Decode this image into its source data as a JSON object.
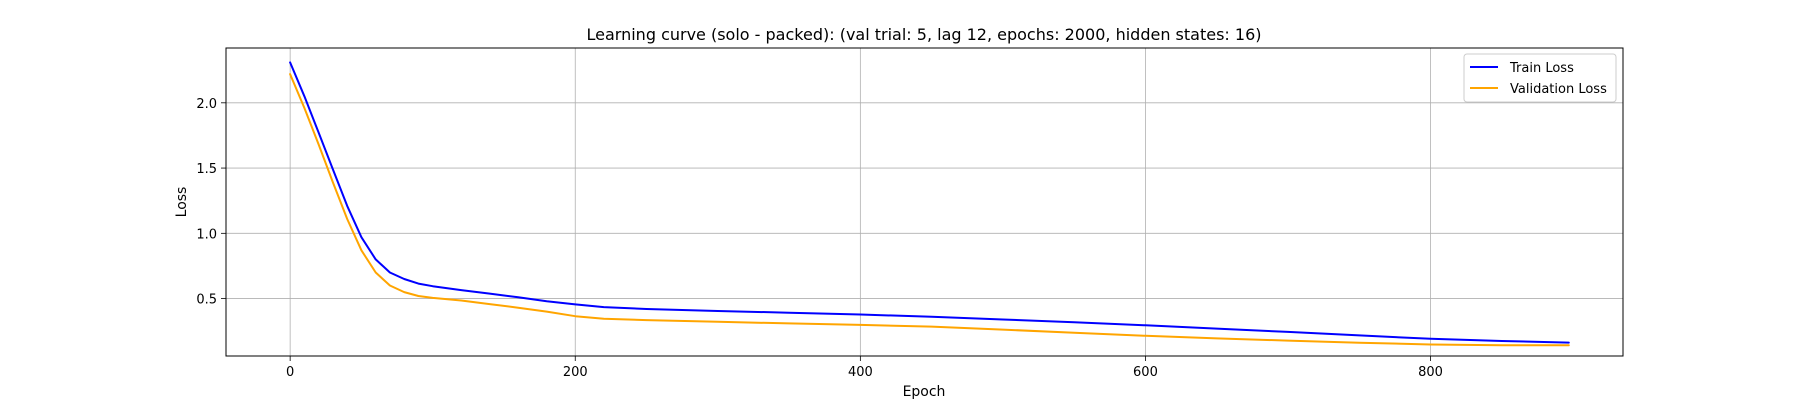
{
  "chart_data": {
    "type": "line",
    "title": "Learning curve (solo - packed): (val trial: 5, lag 12, epochs: 2000, hidden states: 16)",
    "xlabel": "Epoch",
    "ylabel": "Loss",
    "xlim": [
      -45,
      935
    ],
    "ylim": [
      0.06,
      2.42
    ],
    "xticks": [
      0,
      200,
      400,
      600,
      800
    ],
    "yticks": [
      0.5,
      1.0,
      1.5,
      2.0
    ],
    "xtick_labels": [
      "0",
      "200",
      "400",
      "600",
      "800"
    ],
    "ytick_labels": [
      "0.5",
      "1.0",
      "1.5",
      "2.0"
    ],
    "grid": true,
    "legend_position": "top-right",
    "series": [
      {
        "name": "Train Loss",
        "color": "#0000ff",
        "points": [
          [
            0,
            2.31
          ],
          [
            10,
            2.05
          ],
          [
            20,
            1.77
          ],
          [
            30,
            1.49
          ],
          [
            40,
            1.21
          ],
          [
            50,
            0.97
          ],
          [
            60,
            0.8
          ],
          [
            70,
            0.7
          ],
          [
            80,
            0.65
          ],
          [
            90,
            0.615
          ],
          [
            100,
            0.595
          ],
          [
            120,
            0.565
          ],
          [
            140,
            0.538
          ],
          [
            160,
            0.51
          ],
          [
            180,
            0.48
          ],
          [
            200,
            0.455
          ],
          [
            220,
            0.435
          ],
          [
            250,
            0.42
          ],
          [
            300,
            0.405
          ],
          [
            350,
            0.392
          ],
          [
            400,
            0.378
          ],
          [
            450,
            0.36
          ],
          [
            500,
            0.34
          ],
          [
            550,
            0.318
          ],
          [
            600,
            0.295
          ],
          [
            650,
            0.27
          ],
          [
            700,
            0.245
          ],
          [
            750,
            0.218
          ],
          [
            800,
            0.192
          ],
          [
            850,
            0.175
          ],
          [
            897,
            0.163
          ]
        ]
      },
      {
        "name": "Validation Loss",
        "color": "#ffa500",
        "points": [
          [
            0,
            2.22
          ],
          [
            10,
            1.96
          ],
          [
            20,
            1.68
          ],
          [
            30,
            1.39
          ],
          [
            40,
            1.11
          ],
          [
            50,
            0.87
          ],
          [
            60,
            0.7
          ],
          [
            70,
            0.6
          ],
          [
            80,
            0.55
          ],
          [
            90,
            0.52
          ],
          [
            100,
            0.505
          ],
          [
            120,
            0.485
          ],
          [
            140,
            0.458
          ],
          [
            160,
            0.43
          ],
          [
            180,
            0.4
          ],
          [
            200,
            0.365
          ],
          [
            220,
            0.345
          ],
          [
            250,
            0.335
          ],
          [
            300,
            0.322
          ],
          [
            350,
            0.31
          ],
          [
            400,
            0.298
          ],
          [
            450,
            0.285
          ],
          [
            500,
            0.262
          ],
          [
            550,
            0.238
          ],
          [
            600,
            0.215
          ],
          [
            650,
            0.195
          ],
          [
            700,
            0.178
          ],
          [
            750,
            0.162
          ],
          [
            800,
            0.148
          ],
          [
            850,
            0.142
          ],
          [
            897,
            0.142
          ]
        ]
      }
    ]
  }
}
